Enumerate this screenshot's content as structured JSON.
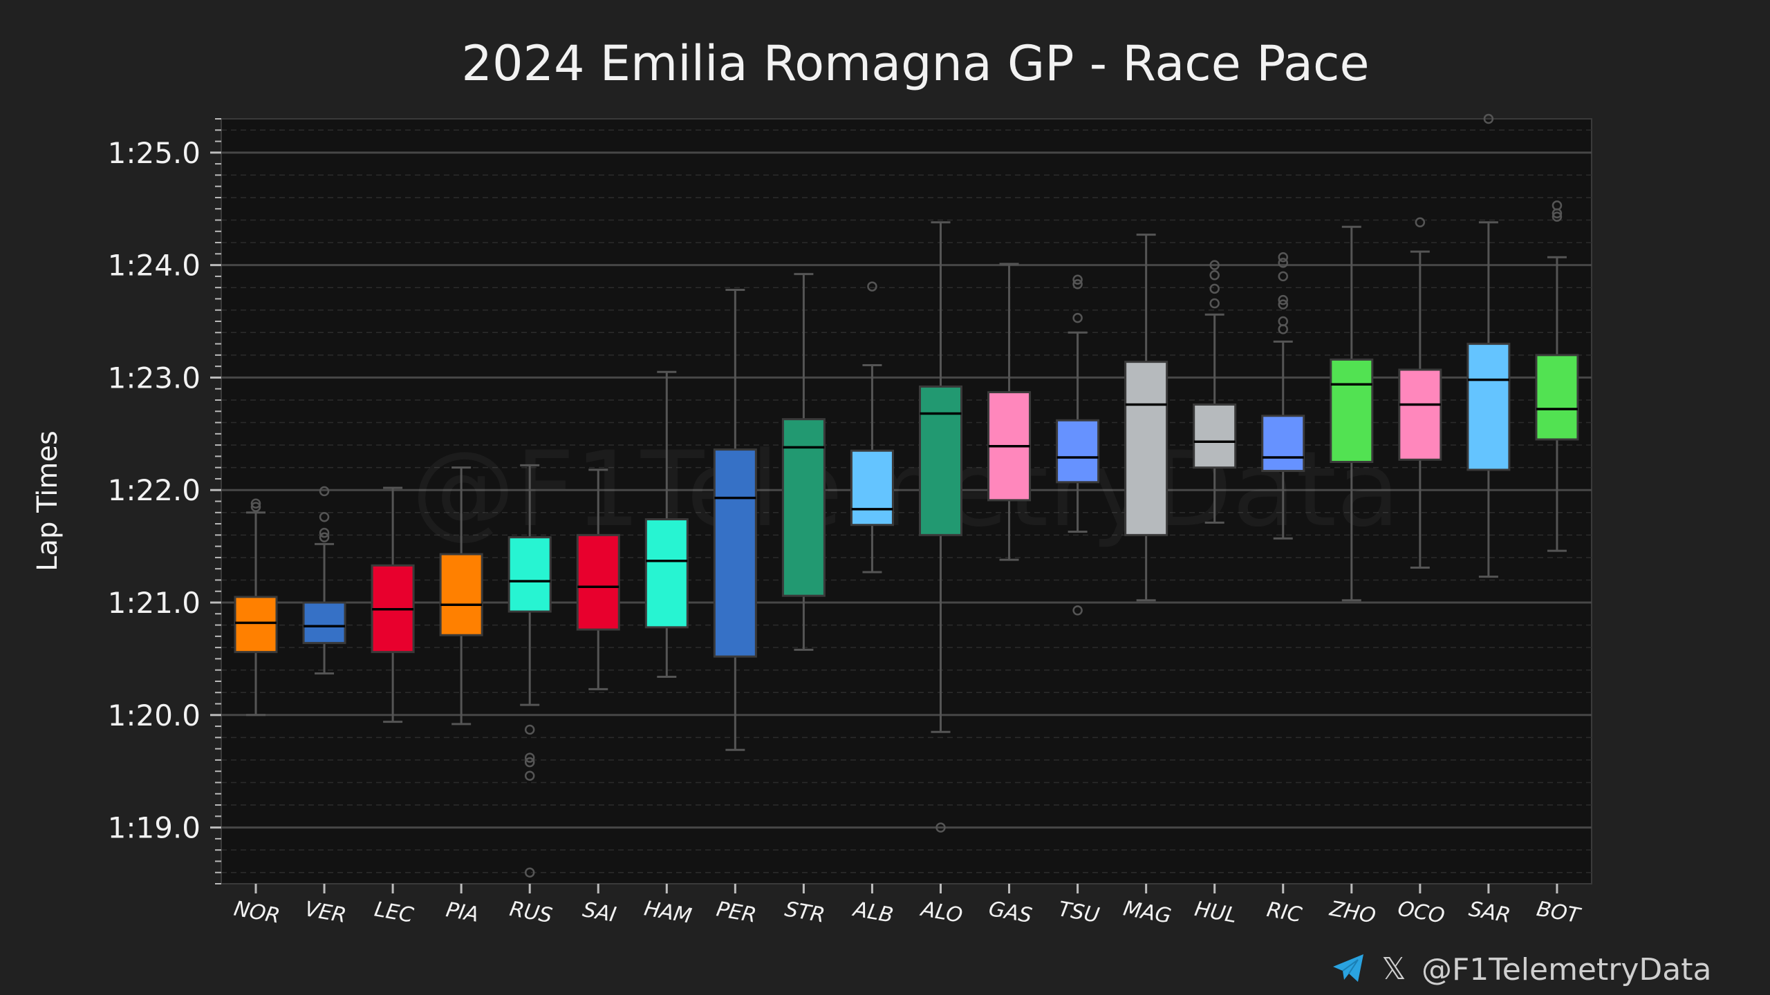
{
  "chart_data": {
    "type": "box",
    "title": "2024 Emilia Romagna GP - Race Pace",
    "xlabel": "",
    "ylabel": "Lap Times",
    "ylim": [
      78.5,
      85.3
    ],
    "yticks": [
      79,
      80,
      81,
      82,
      83,
      84,
      85
    ],
    "ytick_labels": [
      "1:19.0",
      "1:20.0",
      "1:21.0",
      "1:22.0",
      "1:23.0",
      "1:24.0",
      "1:25.0"
    ],
    "grid": true,
    "watermark": "@F1TelemetryData",
    "drivers": [
      {
        "code": "NOR",
        "color": "#FF8000",
        "whislo": 80.0,
        "q1": 80.56,
        "med": 80.82,
        "q3": 81.05,
        "whishi": 81.8,
        "fliers": [
          81.85,
          81.88
        ]
      },
      {
        "code": "VER",
        "color": "#3671C6",
        "whislo": 80.37,
        "q1": 80.64,
        "med": 80.79,
        "q3": 81.0,
        "whishi": 81.52,
        "fliers": [
          81.58,
          81.62,
          81.76,
          81.99
        ]
      },
      {
        "code": "LEC",
        "color": "#E8002D",
        "whislo": 79.94,
        "q1": 80.56,
        "med": 80.94,
        "q3": 81.33,
        "whishi": 82.02,
        "fliers": []
      },
      {
        "code": "PIA",
        "color": "#FF8000",
        "whislo": 79.92,
        "q1": 80.71,
        "med": 80.98,
        "q3": 81.43,
        "whishi": 82.2,
        "fliers": []
      },
      {
        "code": "RUS",
        "color": "#27F4D2",
        "whislo": 80.09,
        "q1": 80.92,
        "med": 81.19,
        "q3": 81.58,
        "whishi": 82.22,
        "fliers": [
          79.87,
          79.62,
          79.58,
          79.46,
          78.6
        ]
      },
      {
        "code": "SAI",
        "color": "#E8002D",
        "whislo": 80.23,
        "q1": 80.76,
        "med": 81.14,
        "q3": 81.6,
        "whishi": 82.18,
        "fliers": []
      },
      {
        "code": "HAM",
        "color": "#27F4D2",
        "whislo": 80.34,
        "q1": 80.78,
        "med": 81.37,
        "q3": 81.74,
        "whishi": 83.05,
        "fliers": []
      },
      {
        "code": "PER",
        "color": "#3671C6",
        "whislo": 79.69,
        "q1": 80.52,
        "med": 81.93,
        "q3": 82.36,
        "whishi": 83.78,
        "fliers": []
      },
      {
        "code": "STR",
        "color": "#229971",
        "whislo": 80.58,
        "q1": 81.06,
        "med": 82.38,
        "q3": 82.63,
        "whishi": 83.92,
        "fliers": []
      },
      {
        "code": "ALB",
        "color": "#64C4FF",
        "whislo": 81.27,
        "q1": 81.69,
        "med": 81.83,
        "q3": 82.35,
        "whishi": 83.11,
        "fliers": [
          83.81
        ]
      },
      {
        "code": "ALO",
        "color": "#229971",
        "whislo": 79.85,
        "q1": 81.6,
        "med": 82.68,
        "q3": 82.92,
        "whishi": 84.38,
        "fliers": [
          79.0
        ]
      },
      {
        "code": "GAS",
        "color": "#FF87BC",
        "whislo": 81.38,
        "q1": 81.91,
        "med": 82.39,
        "q3": 82.87,
        "whishi": 84.01,
        "fliers": []
      },
      {
        "code": "TSU",
        "color": "#6692FF",
        "whislo": 81.63,
        "q1": 82.07,
        "med": 82.29,
        "q3": 82.62,
        "whishi": 83.4,
        "fliers": [
          83.53,
          83.83,
          83.87,
          80.93
        ]
      },
      {
        "code": "MAG",
        "color": "#B6BABD",
        "whislo": 81.02,
        "q1": 81.6,
        "med": 82.76,
        "q3": 83.14,
        "whishi": 84.27,
        "fliers": []
      },
      {
        "code": "HUL",
        "color": "#B6BABD",
        "whislo": 81.71,
        "q1": 82.2,
        "med": 82.43,
        "q3": 82.76,
        "whishi": 83.56,
        "fliers": [
          83.66,
          83.79,
          83.91,
          84.0
        ]
      },
      {
        "code": "RIC",
        "color": "#6692FF",
        "whislo": 81.57,
        "q1": 82.17,
        "med": 82.29,
        "q3": 82.66,
        "whishi": 83.32,
        "fliers": [
          83.43,
          83.5,
          83.65,
          83.69,
          83.9,
          84.02,
          84.07
        ]
      },
      {
        "code": "ZHO",
        "color": "#52E252",
        "whislo": 81.02,
        "q1": 82.25,
        "med": 82.94,
        "q3": 83.16,
        "whishi": 84.34,
        "fliers": []
      },
      {
        "code": "OCO",
        "color": "#FF87BC",
        "whislo": 81.31,
        "q1": 82.27,
        "med": 82.76,
        "q3": 83.07,
        "whishi": 84.12,
        "fliers": [
          84.38
        ]
      },
      {
        "code": "SAR",
        "color": "#64C4FF",
        "whislo": 81.23,
        "q1": 82.18,
        "med": 82.98,
        "q3": 83.3,
        "whishi": 84.38,
        "fliers": [
          85.33
        ]
      },
      {
        "code": "BOT",
        "color": "#52E252",
        "whislo": 81.46,
        "q1": 82.45,
        "med": 82.72,
        "q3": 83.2,
        "whishi": 84.07,
        "fliers": [
          84.43,
          84.46,
          84.53
        ]
      }
    ]
  },
  "footer": {
    "telegram_icon": "telegram-icon",
    "x_icon": "x-logo-icon",
    "x_glyph": "𝕏",
    "handle": "@F1TelemetryData"
  }
}
